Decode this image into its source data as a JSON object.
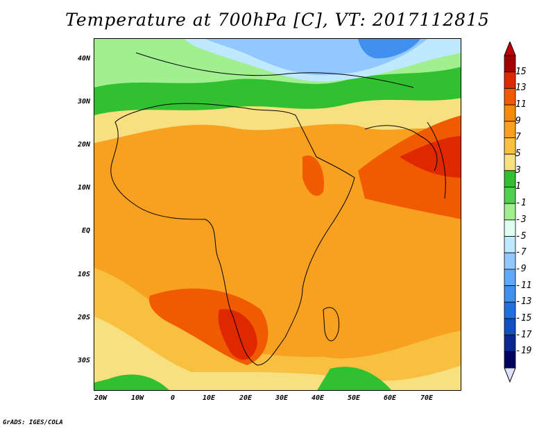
{
  "title": "Temperature at 700hPa [C], VT: 2017112815",
  "credit": "GrADS: IGES/COLA",
  "lat_labels": [
    "40N",
    "30N",
    "20N",
    "10N",
    "EQ",
    "10S",
    "20S",
    "30S"
  ],
  "lon_labels": [
    "20W",
    "10W",
    "0",
    "10E",
    "20E",
    "30E",
    "40E",
    "50E",
    "60E",
    "70E"
  ],
  "colorbar": {
    "labels": [
      "15",
      "13",
      "11",
      "9",
      "7",
      "5",
      "3",
      "1",
      "-1",
      "-3",
      "-5",
      "-7",
      "-9",
      "-11",
      "-13",
      "-15",
      "-17",
      "-19"
    ],
    "colors": [
      "#a00000",
      "#e02800",
      "#f05a00",
      "#f58a0a",
      "#f8a020",
      "#f8c040",
      "#f8e080",
      "#30c030",
      "#50d050",
      "#a0f090",
      "#e0fff0",
      "#c0e8ff",
      "#90c8ff",
      "#60a8f8",
      "#4090f0",
      "#2070e0",
      "#1050c0",
      "#0a2890",
      "#000060"
    ],
    "over_color": "#c00000",
    "under_color": "#e0e0ff"
  }
}
